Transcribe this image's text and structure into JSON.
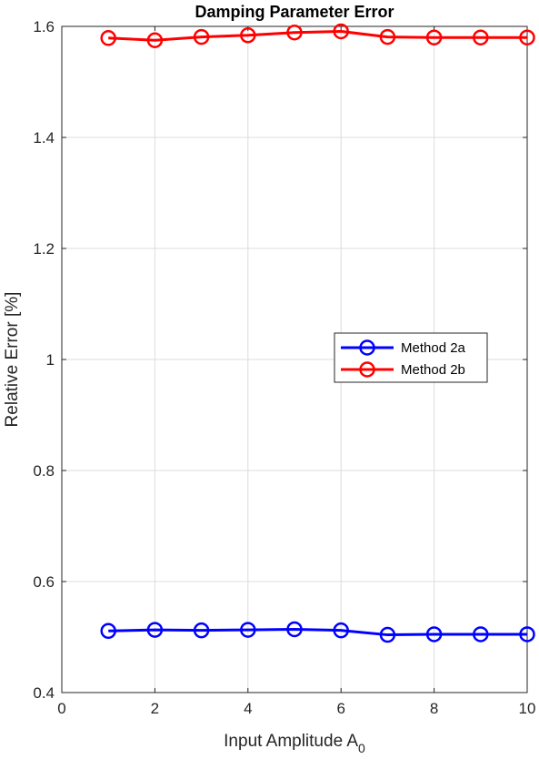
{
  "chart_data": {
    "type": "line",
    "title": "Damping Parameter Error",
    "xlabel": "Input Amplitude A",
    "xlabel_subscript": "0",
    "ylabel": "Relative Error [%]",
    "xlim": [
      0,
      10
    ],
    "ylim": [
      0.4,
      1.6
    ],
    "xticks": [
      0,
      2,
      4,
      6,
      8,
      10
    ],
    "xtick_labels": [
      "0",
      "2",
      "4",
      "6",
      "8",
      "10"
    ],
    "yticks": [
      0.4,
      0.6,
      0.8,
      1.0,
      1.2,
      1.4,
      1.6
    ],
    "ytick_labels": [
      "0.4",
      "0.6",
      "0.8",
      "1",
      "1.2",
      "1.4",
      "1.6"
    ],
    "grid": true,
    "legend_position": "center-right",
    "x": [
      1,
      2,
      3,
      4,
      5,
      6,
      7,
      8,
      9,
      10
    ],
    "series": [
      {
        "name": "Method 2a",
        "color": "#0000ff",
        "marker": "circle",
        "values": [
          0.511,
          0.513,
          0.512,
          0.513,
          0.514,
          0.512,
          0.504,
          0.505,
          0.505,
          0.505
        ]
      },
      {
        "name": "Method 2b",
        "color": "#ff0000",
        "marker": "circle",
        "values": [
          1.579,
          1.575,
          1.581,
          1.584,
          1.589,
          1.591,
          1.581,
          1.58,
          1.58,
          1.58
        ]
      }
    ]
  }
}
